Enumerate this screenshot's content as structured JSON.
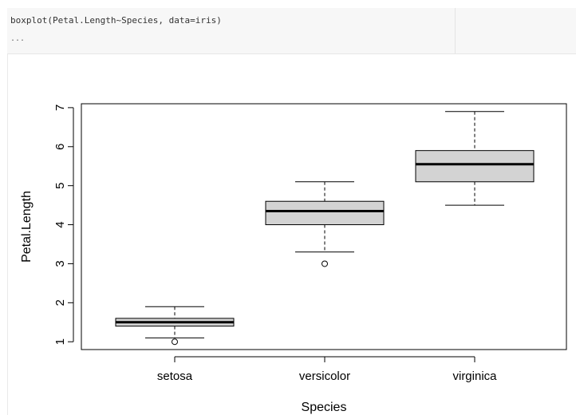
{
  "code_cell": {
    "source": "boxplot(Petal.Length~Species, data=iris)",
    "collapsed_indicator": "..."
  },
  "chart_data": {
    "type": "boxplot",
    "xlabel": "Species",
    "ylabel": "Petal.Length",
    "ylim": [
      0.8,
      7.1
    ],
    "yticks": [
      1,
      2,
      3,
      4,
      5,
      6,
      7
    ],
    "categories": [
      "setosa",
      "versicolor",
      "virginica"
    ],
    "boxes": [
      {
        "category": "setosa",
        "whisker_low": 1.1,
        "q1": 1.4,
        "median": 1.5,
        "q3": 1.6,
        "whisker_high": 1.9,
        "outliers": [
          1.0
        ]
      },
      {
        "category": "versicolor",
        "whisker_low": 3.3,
        "q1": 4.0,
        "median": 4.35,
        "q3": 4.6,
        "whisker_high": 5.1,
        "outliers": [
          3.0
        ]
      },
      {
        "category": "virginica",
        "whisker_low": 4.5,
        "q1": 5.1,
        "median": 5.55,
        "q3": 5.9,
        "whisker_high": 6.9,
        "outliers": []
      }
    ],
    "box_fill": "#d3d3d3",
    "grid": false
  }
}
